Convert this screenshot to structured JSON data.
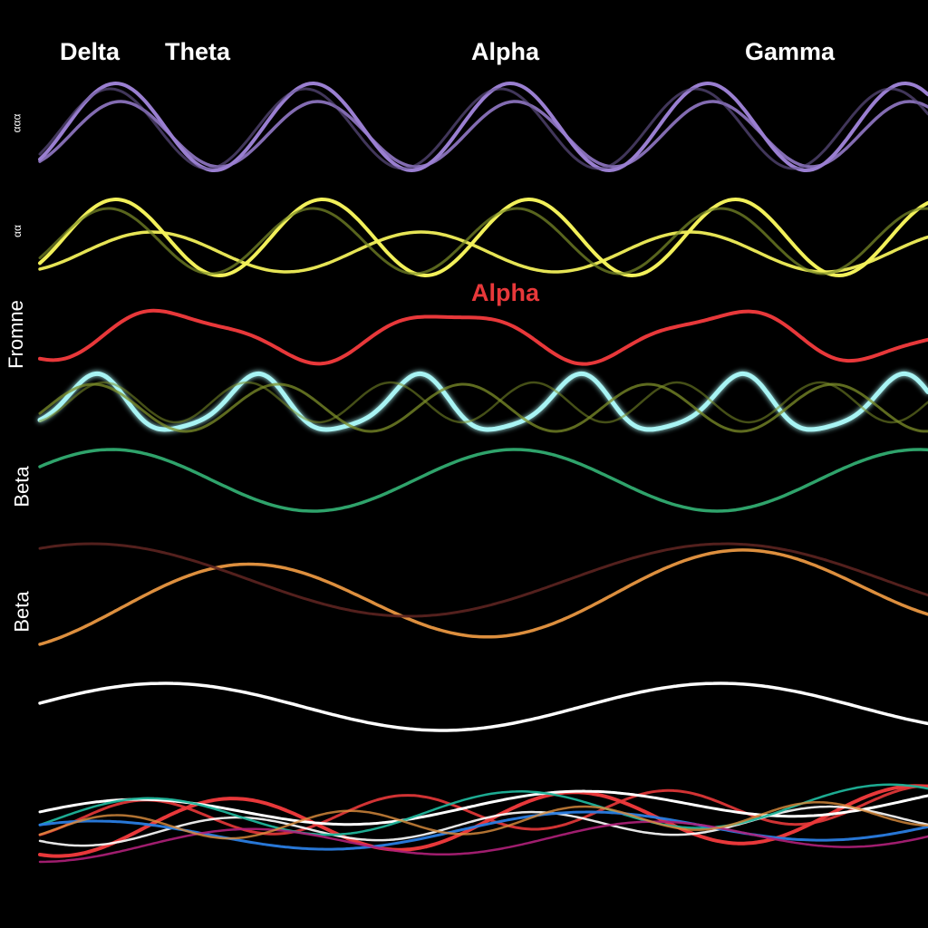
{
  "colors": {
    "background": "#000000",
    "purple": "#9a7fd1",
    "yellow": "#f2f05a",
    "olive": "#7d8f2a",
    "red": "#e8383a",
    "cyan_glow": "#a8f4f4",
    "green": "#2fa36b",
    "orange": "#dd8f3e",
    "dark_red": "#5c2420",
    "white": "#ffffff",
    "blue": "#2a7de1",
    "magenta": "#b0207a",
    "teal": "#1fb49a"
  },
  "labels": {
    "top": [
      "Delta",
      "Theta",
      "Alpha",
      "Gamma"
    ],
    "alpha_mid": "Alpha",
    "side": [
      "ααα",
      "αα",
      "Fromne",
      "Beta",
      "Beta"
    ]
  },
  "chart_data": {
    "type": "line",
    "title": "",
    "xlabel": "",
    "ylabel": "",
    "grid": false,
    "legend": "none",
    "series": [
      {
        "color": "purple",
        "cycles": 4.5,
        "amplitude": 1.0
      },
      {
        "color": "yellow",
        "cycles": 4.3,
        "amplitude": 1.0
      },
      {
        "color": "red",
        "cycles": 3.2,
        "amplitude": 0.6
      },
      {
        "color": "cyan_glow",
        "cycles": 5.5,
        "amplitude": 0.8
      },
      {
        "color": "green",
        "cycles": 2.2,
        "amplitude": 0.8
      },
      {
        "color": "orange",
        "cycles": 1.8,
        "amplitude": 1.0
      },
      {
        "color": "white",
        "cycles": 1.6,
        "amplitude": 0.7
      },
      {
        "color": "mixed",
        "cycles": 3.0,
        "amplitude": 0.4
      }
    ]
  }
}
